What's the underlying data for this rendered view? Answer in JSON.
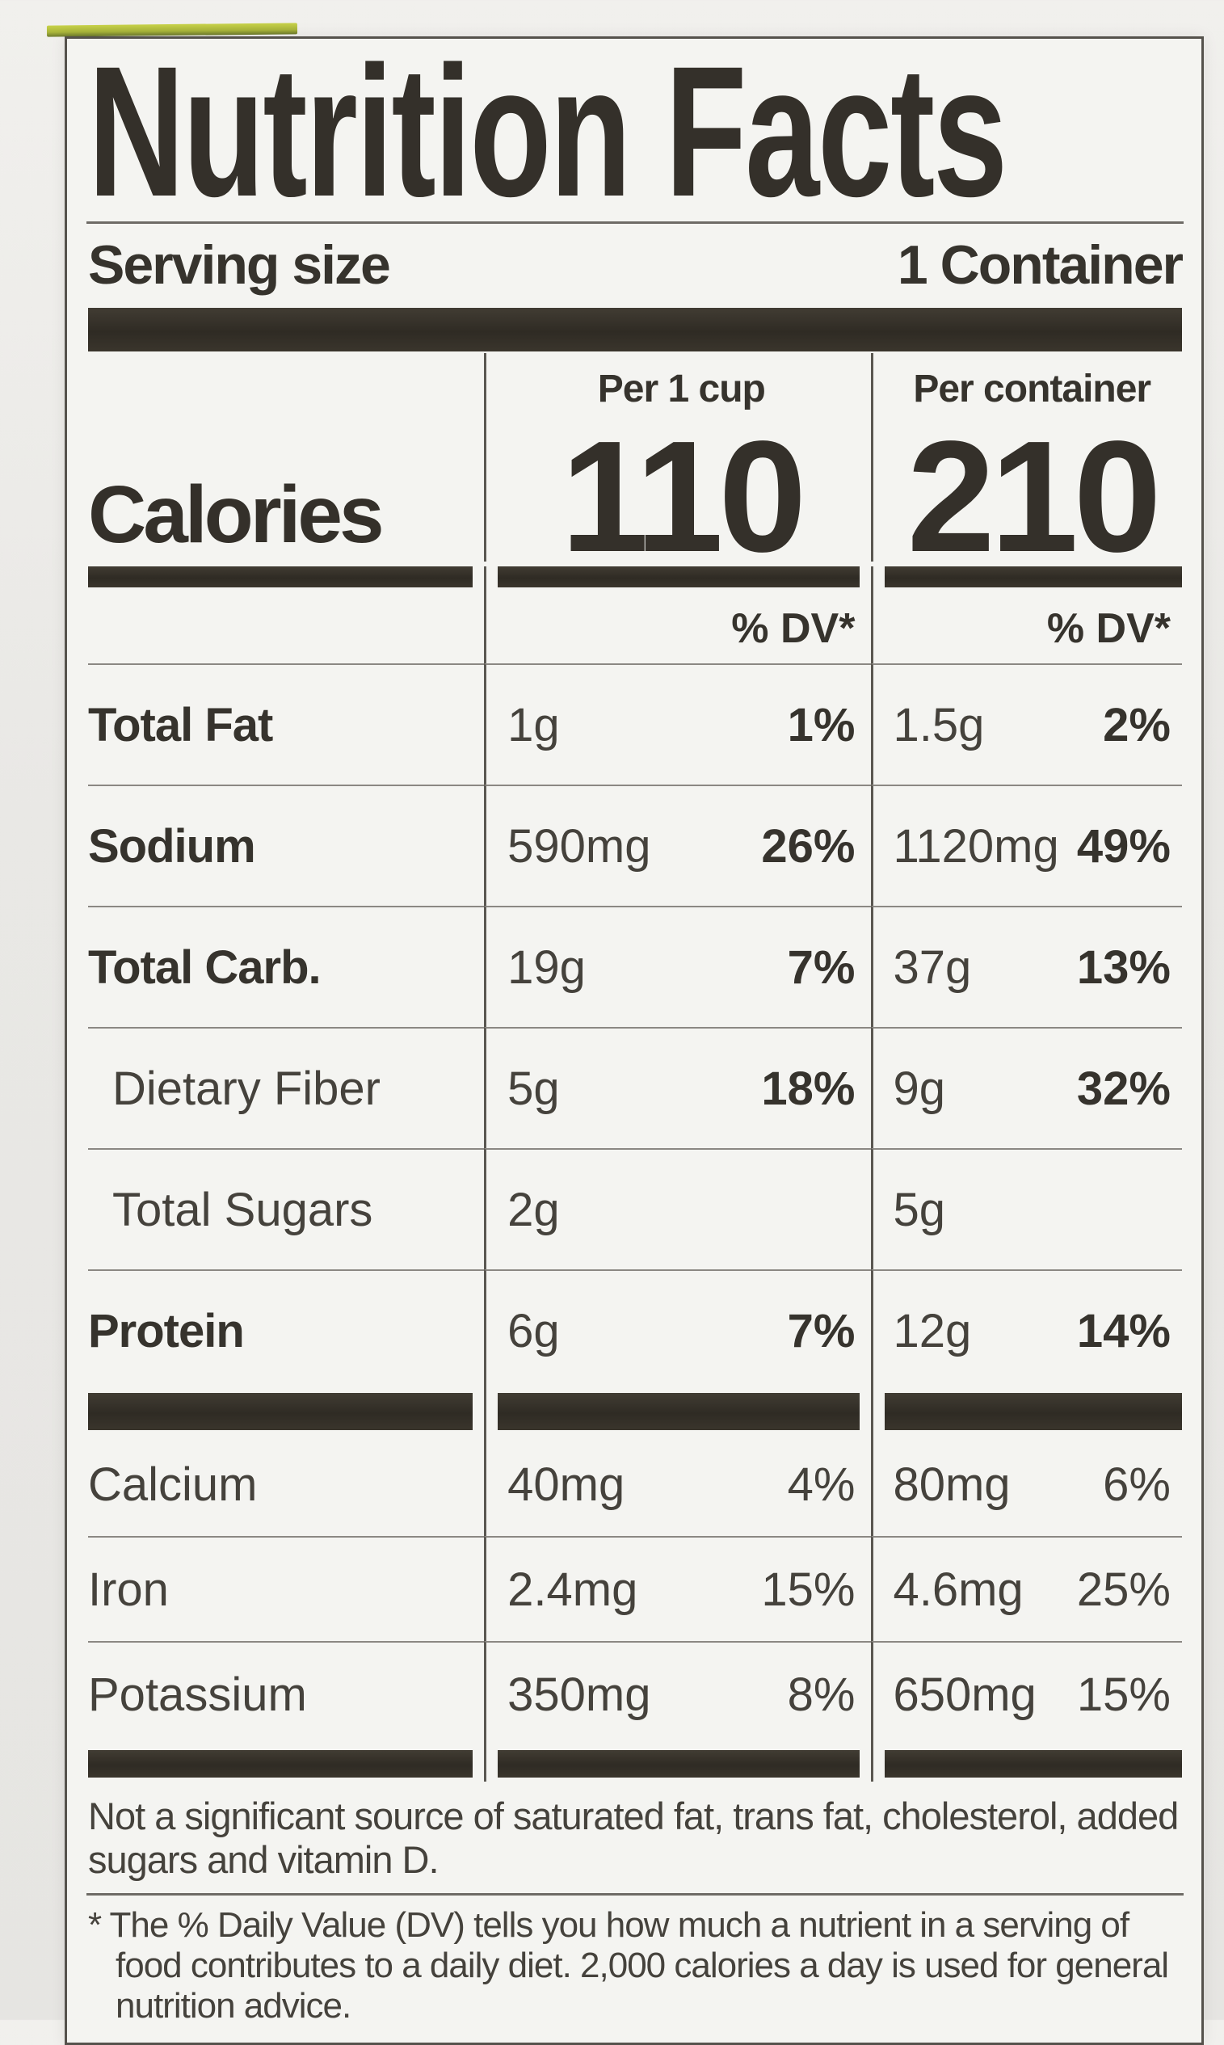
{
  "label": {
    "title": "Nutrition Facts",
    "serving": {
      "label": "Serving size",
      "value": "1 Container"
    },
    "columns": {
      "per_cup": "Per 1 cup",
      "per_container": "Per container"
    },
    "calories": {
      "label": "Calories",
      "per_cup": "110",
      "per_container": "210"
    },
    "dv_header": "% DV*",
    "rows": [
      {
        "name": "Total Fat",
        "cup_amt": "1g",
        "cup_dv": "1%",
        "cont_amt": "1.5g",
        "cont_dv": "2%"
      },
      {
        "name": "Sodium",
        "cup_amt": "590mg",
        "cup_dv": "26%",
        "cont_amt": "1120mg",
        "cont_dv": "49%"
      },
      {
        "name": "Total Carb.",
        "cup_amt": "19g",
        "cup_dv": "7%",
        "cont_amt": "37g",
        "cont_dv": "13%"
      },
      {
        "name": "Dietary Fiber",
        "cup_amt": "5g",
        "cup_dv": "18%",
        "cont_amt": "9g",
        "cont_dv": "32%"
      },
      {
        "name": "Total Sugars",
        "cup_amt": "2g",
        "cup_dv": "",
        "cont_amt": "5g",
        "cont_dv": ""
      },
      {
        "name": "Protein",
        "cup_amt": "6g",
        "cup_dv": "7%",
        "cont_amt": "12g",
        "cont_dv": "14%"
      }
    ],
    "minerals": [
      {
        "name": "Calcium",
        "cup_amt": "40mg",
        "cup_dv": "4%",
        "cont_amt": "80mg",
        "cont_dv": "6%"
      },
      {
        "name": "Iron",
        "cup_amt": "2.4mg",
        "cup_dv": "15%",
        "cont_amt": "4.6mg",
        "cont_dv": "25%"
      },
      {
        "name": "Potassium",
        "cup_amt": "350mg",
        "cup_dv": "8%",
        "cont_amt": "650mg",
        "cont_dv": "15%"
      }
    ],
    "note": "Not a significant source of saturated fat, trans fat, cholesterol, added sugars and vitamin D.",
    "footnote": "* The % Daily Value (DV) tells you how much a nutrient in a serving of food contributes to a daily diet. 2,000 calories a day is used for general nutrition advice."
  },
  "colors": {
    "bar": "#332f28",
    "text": "#3d3a35",
    "package_strip": "#c8d24a"
  }
}
